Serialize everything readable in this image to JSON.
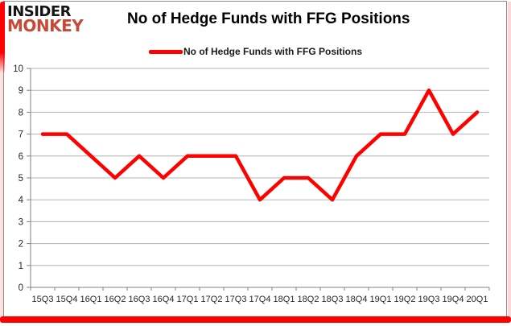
{
  "logo": {
    "line1": "INSIDER",
    "line2": "MONKEY"
  },
  "header": {
    "title": "No of Hedge Funds with FFG Positions"
  },
  "legend": {
    "label": "No of Hedge Funds with FFG Positions",
    "line_color": "#fe0000"
  },
  "chart_data": {
    "type": "line",
    "title": "No of Hedge Funds with FFG Positions",
    "categories": [
      "15Q3",
      "15Q4",
      "16Q1",
      "16Q2",
      "16Q3",
      "16Q4",
      "17Q1",
      "17Q2",
      "17Q3",
      "17Q4",
      "18Q1",
      "18Q2",
      "18Q3",
      "18Q4",
      "19Q1",
      "19Q2",
      "19Q3",
      "19Q4",
      "20Q1"
    ],
    "series": [
      {
        "name": "No of Hedge Funds with FFG Positions",
        "color": "#fe0000",
        "values": [
          7,
          7,
          6,
          5,
          6,
          5,
          6,
          6,
          6,
          4,
          5,
          5,
          4,
          6,
          7,
          7,
          9,
          7,
          8
        ]
      }
    ],
    "ylim": [
      0,
      10
    ],
    "ytick_step": 1,
    "grid": true,
    "legend_position": "top-center",
    "xlabel": "",
    "ylabel": "",
    "axis_color": "#808080",
    "grid_color": "#b3b3b3",
    "label_color": "#262626",
    "line_width": 4.5
  },
  "colors": {
    "accent_red": "#fe0000",
    "logo_red": "#c64a36",
    "frame_red": "#fe0000",
    "chart_border_gray": "#8b8b8b",
    "background": "#ffffff"
  }
}
